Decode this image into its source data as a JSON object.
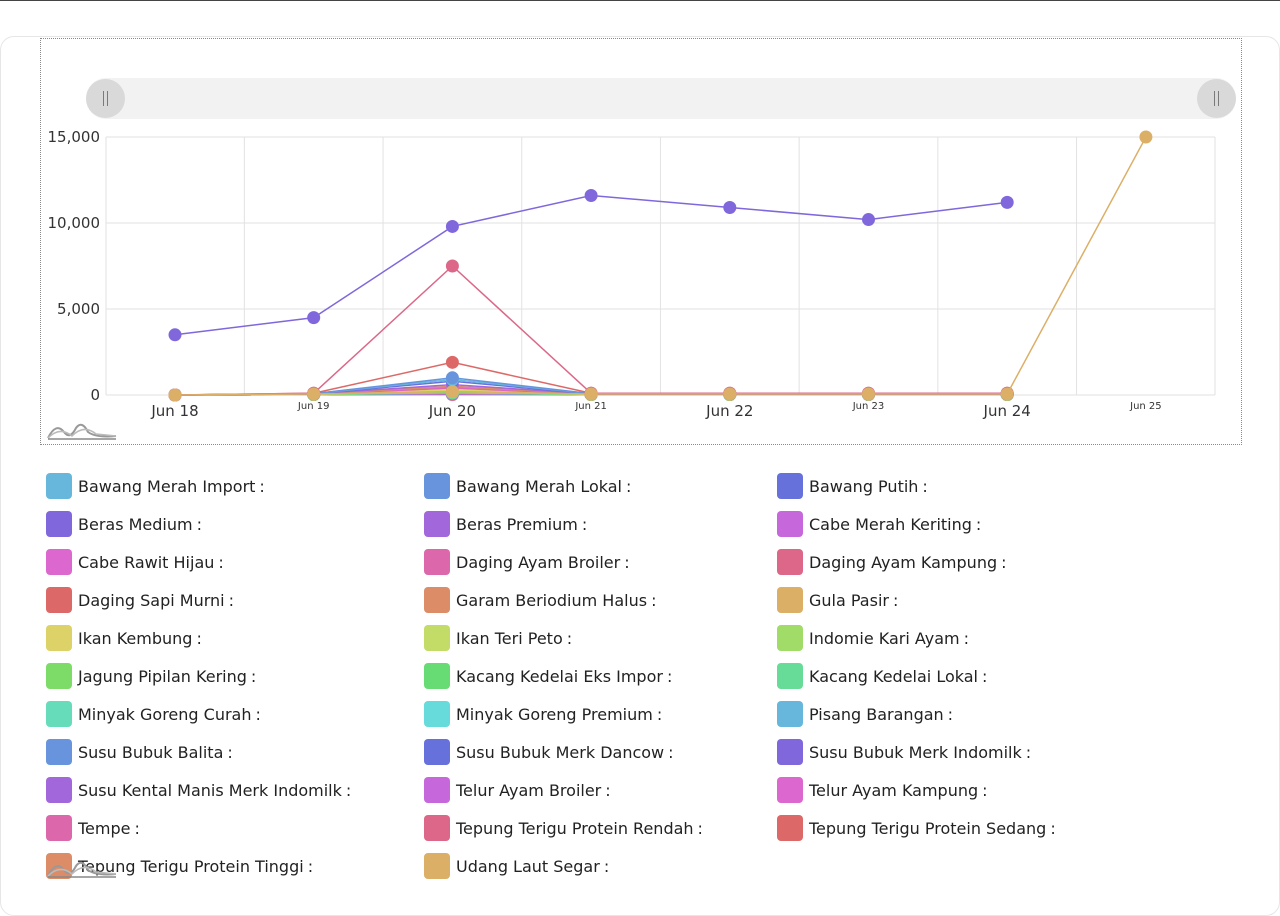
{
  "chart_data": {
    "type": "line",
    "x": [
      "Jun 18",
      "Jun 19",
      "Jun 20",
      "Jun 21",
      "Jun 22",
      "Jun 23",
      "Jun 24",
      "Jun 25"
    ],
    "x_major": [
      true,
      false,
      true,
      false,
      true,
      false,
      true,
      false
    ],
    "ylim": [
      0,
      15000
    ],
    "yticks": [
      0,
      5000,
      10000,
      15000
    ],
    "ytick_labels": [
      "0",
      "5,000",
      "10,000",
      "15,000"
    ],
    "grid": true,
    "title": "",
    "xlabel": "",
    "ylabel": "",
    "series": [
      {
        "name": "Bawang Merah Import",
        "color": "#67b7dc",
        "values": [
          0,
          80,
          900,
          80,
          80,
          80,
          80,
          null
        ]
      },
      {
        "name": "Bawang Merah Lokal",
        "color": "#6794dc",
        "values": [
          0,
          80,
          1000,
          80,
          80,
          80,
          80,
          null
        ]
      },
      {
        "name": "Bawang Putih",
        "color": "#6771dc",
        "values": [
          0,
          60,
          800,
          60,
          60,
          60,
          60,
          null
        ]
      },
      {
        "name": "Beras Medium",
        "color": "#8067dc",
        "values": [
          3500,
          4500,
          9800,
          11600,
          10900,
          10200,
          11200,
          null
        ]
      },
      {
        "name": "Beras Premium",
        "color": "#a367dc",
        "values": [
          0,
          70,
          600,
          70,
          70,
          70,
          70,
          null
        ]
      },
      {
        "name": "Cabe Merah Keriting",
        "color": "#c767dc",
        "values": [
          0,
          60,
          500,
          60,
          60,
          60,
          60,
          null
        ]
      },
      {
        "name": "Cabe Rawit Hijau",
        "color": "#dc67ce",
        "values": [
          0,
          50,
          450,
          50,
          50,
          50,
          50,
          null
        ]
      },
      {
        "name": "Daging Ayam Broiler",
        "color": "#dc67ab",
        "values": [
          0,
          60,
          400,
          60,
          60,
          60,
          60,
          null
        ]
      },
      {
        "name": "Daging Ayam Kampung",
        "color": "#dc6788",
        "values": [
          0,
          100,
          7500,
          100,
          100,
          100,
          100,
          null
        ]
      },
      {
        "name": "Daging Sapi Murni",
        "color": "#dc6967",
        "values": [
          0,
          100,
          1900,
          100,
          100,
          100,
          100,
          null
        ]
      },
      {
        "name": "Garam Beriodium Halus",
        "color": "#dc8c67",
        "values": [
          0,
          60,
          500,
          60,
          60,
          60,
          60,
          null
        ]
      },
      {
        "name": "Gula Pasir",
        "color": "#dcaf67",
        "values": [
          0,
          60,
          200,
          60,
          60,
          60,
          60,
          15000
        ]
      },
      {
        "name": "Ikan Kembung",
        "color": "#dcd267",
        "values": [
          0,
          40,
          300,
          40,
          40,
          40,
          40,
          null
        ]
      },
      {
        "name": "Ikan Teri Peto",
        "color": "#c3dc67",
        "values": [
          0,
          40,
          250,
          40,
          40,
          40,
          40,
          null
        ]
      },
      {
        "name": "Indomie Kari Ayam",
        "color": "#a0dc67",
        "values": [
          0,
          30,
          200,
          30,
          30,
          30,
          30,
          null
        ]
      },
      {
        "name": "Jagung Pipilan Kering",
        "color": "#7ddc67",
        "values": [
          0,
          30,
          180,
          30,
          30,
          30,
          30,
          null
        ]
      },
      {
        "name": "Kacang Kedelai Eks Impor",
        "color": "#67dc75",
        "values": [
          0,
          30,
          160,
          30,
          30,
          30,
          30,
          null
        ]
      },
      {
        "name": "Kacang Kedelai Lokal",
        "color": "#67dc98",
        "values": [
          0,
          30,
          150,
          30,
          30,
          30,
          30,
          null
        ]
      },
      {
        "name": "Minyak Goreng Curah",
        "color": "#67dcbb",
        "values": [
          0,
          30,
          140,
          30,
          30,
          30,
          30,
          null
        ]
      },
      {
        "name": "Minyak Goreng Premium",
        "color": "#67dadc",
        "values": [
          0,
          30,
          130,
          30,
          30,
          30,
          30,
          null
        ]
      },
      {
        "name": "Pisang Barangan",
        "color": "#67b7dc",
        "values": [
          0,
          30,
          120,
          30,
          30,
          30,
          30,
          null
        ]
      },
      {
        "name": "Susu Bubuk Balita",
        "color": "#6794dc",
        "values": [
          0,
          30,
          110,
          30,
          30,
          30,
          30,
          null
        ]
      },
      {
        "name": "Susu Bubuk Merk Dancow",
        "color": "#6771dc",
        "values": [
          0,
          30,
          100,
          30,
          30,
          30,
          30,
          null
        ]
      },
      {
        "name": "Susu Bubuk Merk Indomilk",
        "color": "#8067dc",
        "values": [
          0,
          30,
          90,
          30,
          30,
          30,
          30,
          null
        ]
      },
      {
        "name": "Susu Kental Manis Merk Indomilk",
        "color": "#a367dc",
        "values": [
          0,
          30,
          80,
          30,
          30,
          30,
          30,
          null
        ]
      },
      {
        "name": "Telur Ayam Broiler",
        "color": "#c767dc",
        "values": [
          0,
          30,
          70,
          30,
          30,
          30,
          30,
          null
        ]
      },
      {
        "name": "Telur Ayam Kampung",
        "color": "#dc67ce",
        "values": [
          0,
          30,
          60,
          30,
          30,
          30,
          30,
          null
        ]
      },
      {
        "name": "Tempe",
        "color": "#dc67ab",
        "values": [
          0,
          30,
          50,
          30,
          30,
          30,
          30,
          null
        ]
      },
      {
        "name": "Tepung Terigu Protein Rendah",
        "color": "#dc6788",
        "values": [
          0,
          30,
          40,
          30,
          30,
          30,
          30,
          null
        ]
      },
      {
        "name": "Tepung Terigu Protein Sedang",
        "color": "#dc6967",
        "values": [
          0,
          30,
          30,
          30,
          30,
          30,
          30,
          null
        ]
      },
      {
        "name": "Tepung Terigu Protein Tinggi",
        "color": "#dc8c67",
        "values": [
          0,
          30,
          20,
          30,
          30,
          30,
          30,
          null
        ]
      },
      {
        "name": "Udang Laut Segar",
        "color": "#dcaf67",
        "values": [
          0,
          30,
          100,
          30,
          30,
          30,
          30,
          null
        ]
      }
    ]
  },
  "legend": {
    "value_suffix": ":",
    "placement": "bottom"
  },
  "scrollbar": {
    "left_grip_icon": "grip-icon",
    "right_grip_icon": "grip-icon"
  }
}
